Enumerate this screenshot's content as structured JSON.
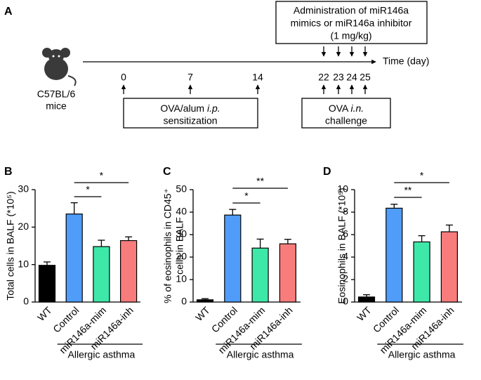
{
  "timeline": {
    "panel": "A",
    "strain": [
      "C57BL/6",
      "mice"
    ],
    "days": [
      0,
      7,
      14,
      22,
      23,
      24,
      25
    ],
    "axis_label": "Time (day)",
    "treatment": [
      "Administration of miR146a",
      "mimics or miR146a inhibitor",
      "(1 mg/kg)"
    ],
    "sensitization": {
      "text": "OVA/alum",
      "italic": "i.p.",
      "line2": "sensitization"
    },
    "challenge": {
      "text": "OVA",
      "italic": "i.n.",
      "line2": "challenge"
    }
  },
  "chart_data": [
    {
      "type": "bar",
      "panel": "B",
      "ylabel": [
        "Total cells in BALF (*10⁵)"
      ],
      "categories": [
        "WT",
        "Control",
        "miR146a-mim",
        "miR146a-inh"
      ],
      "values": [
        9.8,
        23.5,
        14.8,
        16.4
      ],
      "errors": [
        0.9,
        3.0,
        1.7,
        1.0
      ],
      "colors": [
        "#000000",
        "#4f9cf9",
        "#3ee8a8",
        "#f87c7c"
      ],
      "ylim": [
        0,
        30
      ],
      "yticks": [
        0,
        10,
        20,
        30
      ],
      "group_label": "Allergic asthma",
      "significance": [
        {
          "label": "*",
          "pair": [
            "Control",
            "miR146a-mim"
          ]
        },
        {
          "label": "*",
          "pair": [
            "Control",
            "miR146a-inh"
          ]
        }
      ]
    },
    {
      "type": "bar",
      "panel": "C",
      "ylabel": [
        "% of eosinophils in CD45⁺",
        "cells in BALF"
      ],
      "categories": [
        "WT",
        "Control",
        "miR146a-mim",
        "miR146a-inh"
      ],
      "values": [
        1.0,
        38.7,
        24.0,
        25.9
      ],
      "errors": [
        0.5,
        2.5,
        4.0,
        2.0
      ],
      "colors": [
        "#000000",
        "#4f9cf9",
        "#3ee8a8",
        "#f87c7c"
      ],
      "ylim": [
        0,
        50
      ],
      "yticks": [
        0,
        10,
        20,
        30,
        40,
        50
      ],
      "group_label": "Allergic asthma",
      "significance": [
        {
          "label": "*",
          "pair": [
            "Control",
            "miR146a-mim"
          ]
        },
        {
          "label": "**",
          "pair": [
            "Control",
            "miR146a-inh"
          ]
        }
      ]
    },
    {
      "type": "bar",
      "panel": "D",
      "ylabel": [
        "Eosinophils in BALF (*10⁵)"
      ],
      "categories": [
        "WT",
        "Control",
        "miR146a-mim",
        "miR146a-inh"
      ],
      "values": [
        0.45,
        8.35,
        5.35,
        6.25
      ],
      "errors": [
        0.2,
        0.35,
        0.55,
        0.6
      ],
      "colors": [
        "#000000",
        "#4f9cf9",
        "#3ee8a8",
        "#f87c7c"
      ],
      "ylim": [
        0,
        10
      ],
      "yticks": [
        0,
        2,
        4,
        6,
        8,
        10
      ],
      "group_label": "Allergic asthma",
      "significance": [
        {
          "label": "**",
          "pair": [
            "Control",
            "miR146a-mim"
          ]
        },
        {
          "label": "*",
          "pair": [
            "Control",
            "miR146a-inh"
          ]
        }
      ]
    }
  ]
}
